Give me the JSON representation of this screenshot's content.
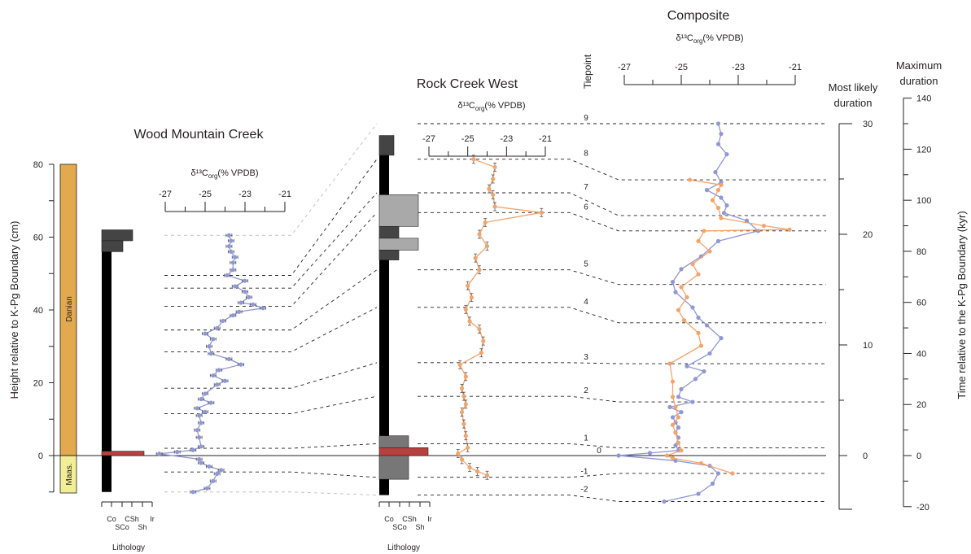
{
  "colors": {
    "blue": "#8f97d4",
    "orange": "#f2a46c",
    "danian": "#e2a94e",
    "maas": "#f2ee97",
    "boundary_bed": "#b8403d",
    "dark_grey": "#444444",
    "mid_grey": "#777777",
    "light_grey": "#a9a9a9"
  },
  "chart_data": [
    {
      "panel": "wood_mountain_creek",
      "type": "line",
      "title": "Wood Mountain Creek",
      "xlabel": "δ¹³C_org (% VPDB)",
      "xlabel_main": "δ¹³C",
      "xlabel_sub": "org",
      "xlabel_tail": "(% VPDB)",
      "xlim": [
        -27,
        -21
      ],
      "xticks": [
        -27,
        -25,
        -23,
        -21
      ],
      "ylabel": "Height relative to K-Pg Boundary (cm)",
      "ylim": [
        -10,
        80
      ],
      "yticks": [
        0,
        20,
        40,
        60,
        80
      ],
      "stage_labels": [
        "Danian",
        "Maas."
      ],
      "lithology_label": "Lithology",
      "lithology_ticks": [
        "Co",
        "SCo",
        "CSh",
        "Sh",
        "Ir"
      ],
      "series": [
        {
          "color": "#8f97d4",
          "points": [
            [
              -25.6,
              -10
            ],
            [
              -24.9,
              -9
            ],
            [
              -24.6,
              -7
            ],
            [
              -24.4,
              -5
            ],
            [
              -24.2,
              -4
            ],
            [
              -24.8,
              -3
            ],
            [
              -25.2,
              -2
            ],
            [
              -25.3,
              -1
            ],
            [
              -27.3,
              0.5
            ],
            [
              -26.4,
              1
            ],
            [
              -25.6,
              1.5
            ],
            [
              -25.2,
              2.5
            ],
            [
              -25.3,
              5
            ],
            [
              -25.4,
              7
            ],
            [
              -25.2,
              9
            ],
            [
              -25.3,
              11
            ],
            [
              -25.0,
              12
            ],
            [
              -25.4,
              13
            ],
            [
              -24.7,
              14.5
            ],
            [
              -25.2,
              15.5
            ],
            [
              -25.0,
              17
            ],
            [
              -24.4,
              19.5
            ],
            [
              -24.0,
              20.5
            ],
            [
              -24.6,
              22
            ],
            [
              -24.3,
              23.5
            ],
            [
              -23.2,
              25
            ],
            [
              -23.8,
              26.5
            ],
            [
              -24.7,
              28
            ],
            [
              -24.8,
              30
            ],
            [
              -24.6,
              32
            ],
            [
              -25.0,
              33.5
            ],
            [
              -24.4,
              35
            ],
            [
              -24.1,
              37
            ],
            [
              -23.6,
              38.5
            ],
            [
              -23.3,
              39.5
            ],
            [
              -22.1,
              40.5
            ],
            [
              -22.6,
              41.5
            ],
            [
              -23.2,
              42
            ],
            [
              -22.8,
              43.5
            ],
            [
              -23.0,
              45
            ],
            [
              -23.5,
              46.5
            ],
            [
              -23.0,
              48
            ],
            [
              -23.9,
              49.5
            ],
            [
              -23.6,
              51
            ],
            [
              -23.6,
              53
            ],
            [
              -23.5,
              54.5
            ],
            [
              -23.7,
              56
            ],
            [
              -23.8,
              57.5
            ],
            [
              -23.7,
              59
            ],
            [
              -23.8,
              60.5
            ]
          ]
        }
      ]
    },
    {
      "panel": "rock_creek_west",
      "type": "line",
      "title": "Rock Creek West",
      "xlabel": "δ¹³C_org (% VPDB)",
      "xlabel_main": "δ¹³C",
      "xlabel_sub": "org",
      "xlabel_tail": "(% VPDB)",
      "xlim": [
        -27,
        -21
      ],
      "xticks": [
        -27,
        -25,
        -23,
        -21
      ],
      "lithology_label": "Lithology",
      "lithology_ticks": [
        "Co",
        "SCo",
        "CSh",
        "Sh",
        "Ir"
      ],
      "series": [
        {
          "color": "#f2a46c",
          "points": [
            [
              -24.0,
              -5
            ],
            [
              -24.5,
              -4
            ],
            [
              -24.9,
              -3
            ],
            [
              -25.3,
              -1
            ],
            [
              -25.5,
              0.5
            ],
            [
              -25.0,
              2
            ],
            [
              -25.1,
              5
            ],
            [
              -25.2,
              8
            ],
            [
              -25.3,
              11
            ],
            [
              -25.1,
              13
            ],
            [
              -25.2,
              15
            ],
            [
              -25.3,
              17
            ],
            [
              -25.1,
              20
            ],
            [
              -25.4,
              23
            ],
            [
              -24.3,
              26
            ],
            [
              -24.2,
              29
            ],
            [
              -24.4,
              32
            ],
            [
              -24.9,
              34
            ],
            [
              -25.1,
              37
            ],
            [
              -24.8,
              40
            ],
            [
              -25.0,
              43
            ],
            [
              -24.4,
              47
            ],
            [
              -24.6,
              50
            ],
            [
              -24.0,
              53
            ],
            [
              -24.4,
              56
            ],
            [
              -24.1,
              59
            ],
            [
              -21.2,
              61.5
            ],
            [
              -23.6,
              63
            ],
            [
              -23.7,
              66
            ],
            [
              -23.9,
              67.5
            ],
            [
              -23.7,
              70
            ],
            [
              -23.6,
              73
            ],
            [
              -24.7,
              75
            ]
          ]
        }
      ]
    },
    {
      "panel": "composite",
      "type": "line",
      "title": "Composite",
      "xlabel": "δ¹³C_org (% VPDB)",
      "xlabel_main": "δ¹³C",
      "xlabel_sub": "org",
      "xlabel_tail": "(% VPDB)",
      "xlim": [
        -27,
        -21
      ],
      "xticks": [
        -27,
        -25,
        -23,
        -21
      ],
      "tiepoint_label": "Tiepoint",
      "tiepoints": [
        {
          "label": "9",
          "wmc": 60.5,
          "rcw": 84,
          "composite_kyr": 130
        },
        {
          "label": "8",
          "wmc": 49.5,
          "rcw": 75,
          "composite_kyr": 108
        },
        {
          "label": "7",
          "wmc": 46,
          "rcw": 66.5,
          "composite_kyr": 94
        },
        {
          "label": "6",
          "wmc": 41,
          "rcw": 61.5,
          "composite_kyr": 88
        },
        {
          "label": "5",
          "wmc": 34.5,
          "rcw": 47,
          "composite_kyr": 67
        },
        {
          "label": "4",
          "wmc": 28.5,
          "rcw": 37.5,
          "composite_kyr": 52
        },
        {
          "label": "3",
          "wmc": 18.5,
          "rcw": 23.5,
          "composite_kyr": 36
        },
        {
          "label": "2",
          "wmc": 11.5,
          "rcw": 15,
          "composite_kyr": 21
        },
        {
          "label": "1",
          "wmc": 2,
          "rcw": 3,
          "composite_kyr": 3
        },
        {
          "label": "0",
          "wmc": 0,
          "rcw": 0,
          "composite_kyr": 0
        },
        {
          "label": "-1",
          "wmc": -4.5,
          "rcw": -5.5,
          "composite_kyr": -7
        },
        {
          "label": "-2",
          "wmc": -10,
          "rcw": -10,
          "composite_kyr": -18
        }
      ],
      "most_likely_label_line1": "Most likely",
      "most_likely_label_line2": "duration",
      "most_likely_ylim": [
        -2.5,
        30
      ],
      "most_likely_ticks": [
        0,
        10,
        20,
        30
      ],
      "max_duration_label_line1": "Maximum",
      "max_duration_label_line2": "duration",
      "max_duration_ylim": [
        -20,
        140
      ],
      "max_duration_ticks": [
        -20,
        0,
        20,
        40,
        60,
        80,
        100,
        120,
        140
      ],
      "y2label": "Time relative to the K-Pg Boundary (kyr)",
      "series": [
        {
          "color": "#8f97d4",
          "points": [
            [
              -25.6,
              -18
            ],
            [
              -24.4,
              -15
            ],
            [
              -23.9,
              -11
            ],
            [
              -23.7,
              -7
            ],
            [
              -24.0,
              -4
            ],
            [
              -25.2,
              -2
            ],
            [
              -27.2,
              0
            ],
            [
              -26.1,
              1
            ],
            [
              -25.1,
              2
            ],
            [
              -25.2,
              4
            ],
            [
              -25.1,
              7
            ],
            [
              -25.2,
              9
            ],
            [
              -25.1,
              11
            ],
            [
              -25.2,
              13
            ],
            [
              -25.3,
              15
            ],
            [
              -25.0,
              17
            ],
            [
              -25.4,
              19
            ],
            [
              -24.6,
              21
            ],
            [
              -25.1,
              23
            ],
            [
              -25.0,
              26
            ],
            [
              -24.5,
              30
            ],
            [
              -24.2,
              33
            ],
            [
              -24.8,
              35
            ],
            [
              -24.0,
              40
            ],
            [
              -23.6,
              46
            ],
            [
              -24.1,
              51
            ],
            [
              -24.4,
              54
            ],
            [
              -24.6,
              58
            ],
            [
              -25.2,
              64
            ],
            [
              -25.3,
              68
            ],
            [
              -25.0,
              73
            ],
            [
              -24.3,
              78
            ],
            [
              -23.7,
              84
            ],
            [
              -22.3,
              88
            ],
            [
              -22.7,
              92
            ],
            [
              -23.5,
              95
            ],
            [
              -23.4,
              98
            ],
            [
              -23.6,
              101
            ],
            [
              -24.1,
              104
            ],
            [
              -23.6,
              107
            ],
            [
              -23.8,
              111
            ],
            [
              -23.4,
              118
            ],
            [
              -23.7,
              122
            ],
            [
              -23.6,
              126
            ],
            [
              -23.7,
              130
            ]
          ]
        },
        {
          "color": "#f2a46c",
          "points": [
            [
              -23.2,
              -7
            ],
            [
              -24.3,
              -3
            ],
            [
              -25.3,
              -1
            ],
            [
              -25.5,
              0
            ],
            [
              -25.0,
              2
            ],
            [
              -25.1,
              5
            ],
            [
              -25.2,
              9
            ],
            [
              -25.3,
              12
            ],
            [
              -25.1,
              15
            ],
            [
              -25.2,
              19
            ],
            [
              -25.3,
              23
            ],
            [
              -25.3,
              29
            ],
            [
              -25.4,
              36
            ],
            [
              -24.3,
              43
            ],
            [
              -24.4,
              48
            ],
            [
              -24.9,
              53
            ],
            [
              -25.1,
              57
            ],
            [
              -24.8,
              62
            ],
            [
              -25.0,
              66
            ],
            [
              -24.4,
              71
            ],
            [
              -24.6,
              75
            ],
            [
              -24.0,
              80
            ],
            [
              -24.4,
              84
            ],
            [
              -24.2,
              88
            ],
            [
              -21.2,
              88.5
            ],
            [
              -22.1,
              90
            ],
            [
              -23.6,
              93
            ],
            [
              -23.7,
              97
            ],
            [
              -23.9,
              100
            ],
            [
              -23.7,
              104
            ],
            [
              -23.6,
              106
            ],
            [
              -24.7,
              108
            ]
          ]
        }
      ]
    }
  ]
}
